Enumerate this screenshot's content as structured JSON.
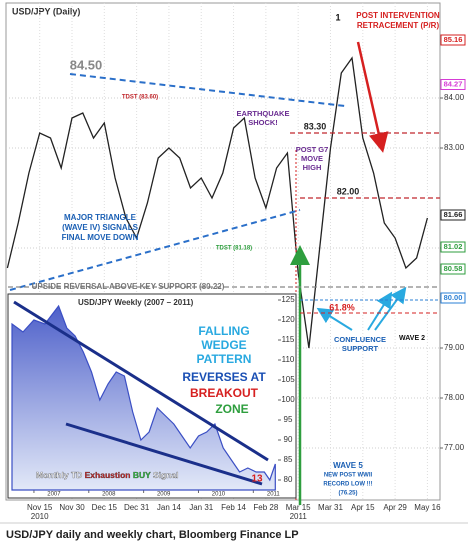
{
  "chart_data": [
    {
      "type": "line",
      "title": "USD/JPY (Daily)",
      "categories": [
        null,
        null,
        null,
        "Nov 15",
        null,
        null,
        "Nov 30",
        null,
        null,
        "Dec 15",
        null,
        null,
        "Dec 31",
        null,
        null,
        "Jan 14",
        null,
        null,
        "Jan 31",
        null,
        null,
        "Feb 14",
        null,
        null,
        "Feb 28",
        null,
        null,
        "Mar 15",
        null,
        null,
        "Mar 31",
        null,
        null,
        "Apr 15",
        null,
        null,
        "Apr 29",
        null,
        null,
        "May 16"
      ],
      "year_labels": [
        "2010",
        "2011"
      ],
      "values": [
        80.6,
        81.5,
        82.5,
        83.3,
        83.2,
        82.6,
        83.6,
        83.7,
        83.2,
        83.5,
        82.4,
        81.6,
        81.2,
        81.9,
        82.8,
        83.0,
        82.8,
        82.2,
        82.4,
        82.0,
        82.5,
        83.4,
        83.6,
        82.4,
        81.8,
        82.6,
        82.9,
        80.5,
        79.0,
        81.0,
        83.0,
        84.5,
        84.8,
        83.2,
        82.5,
        81.5,
        81.2,
        80.6,
        80.8,
        81.6
      ],
      "color": "#222222",
      "ylim": [
        76,
        85.9
      ],
      "yticks": [
        {
          "value": 77,
          "label": "77.00"
        },
        {
          "value": 78,
          "label": "78.00"
        },
        {
          "value": 79,
          "label": "79.00"
        },
        {
          "value": 81,
          "label": "81.00"
        },
        {
          "value": 83,
          "label": "83.00"
        },
        {
          "value": 84,
          "label": "84.00"
        }
      ],
      "grid": true,
      "levels": [
        {
          "value": 83.3,
          "label": "83.30"
        },
        {
          "value": 82,
          "label": "82.00"
        },
        80.22
      ],
      "level_colors": [
        "#c0282d",
        "#c0282d",
        "#888888"
      ],
      "price_markers": [
        85.16,
        84.27,
        81.66,
        81.02,
        80.58,
        {
          "value": 80,
          "label": "80.00"
        }
      ],
      "price_marker_colors": [
        "#d62020",
        "#d63cd6",
        "#222222",
        "#2e9e3e",
        "#2e9e3e",
        "#2a7fd4"
      ],
      "annotations": [
        {
          "lines": [
            "84.50"
          ],
          "color": "#888888"
        },
        {
          "lines": [
            "TDST (83.60)"
          ],
          "color": "#c0282d"
        },
        {
          "lines": [
            "EARTHQUAKE",
            "SHOCK!"
          ],
          "color": "#6a2c91"
        },
        {
          "lines": [
            "POST G7",
            "MOVE",
            "HIGH"
          ],
          "color": "#6a2c91"
        },
        {
          "lines": [
            "1"
          ],
          "color": "#111111"
        },
        {
          "lines": [
            "POST INTERVENTION",
            "RETRACEMENT (P/R)"
          ],
          "color": "#d62020"
        },
        {
          "lines": [
            "MAJOR TRIANGLE",
            "(WAVE IV) SIGNALS",
            "FINAL MOVE DOWN"
          ],
          "color": "#1a5fb4"
        },
        {
          "lines": [
            "TDST (81.18)"
          ],
          "color": "#2e9e3e"
        },
        {
          "lines": [
            "UPSIDE REVERSAL ABOVE  KEY SUPPORT (80.22)"
          ],
          "color": "#777777"
        },
        {
          "lines": [
            "61.8%"
          ],
          "color": "#d62020"
        },
        {
          "lines": [
            "CONFLUENCE",
            "SUPPORT"
          ],
          "color": "#1a5fb4"
        },
        {
          "lines": [
            "WAVE 2"
          ],
          "color": "#111111"
        },
        {
          "lines": [
            "WAVE 5",
            "NEW POST WWII",
            "RECORD LOW !!!",
            "(76.25)"
          ],
          "color": "#1a5fb4"
        }
      ]
    },
    {
      "type": "area",
      "title": "USD/JPY Weekly (2007 – 2011)",
      "x": [
        2006.6,
        2006.8,
        2007.0,
        2007.2,
        2007.45,
        2007.6,
        2007.75,
        2007.9,
        2008.05,
        2008.2,
        2008.35,
        2008.5,
        2008.65,
        2008.8,
        2008.95,
        2009.1,
        2009.25,
        2009.4,
        2009.55,
        2009.7,
        2009.85,
        2010.0,
        2010.15,
        2010.3,
        2010.45,
        2010.6,
        2010.75,
        2010.9,
        2011.05,
        2011.2,
        2011.3,
        2011.4
      ],
      "values": [
        119,
        117,
        120,
        119,
        123.5,
        118,
        116,
        112,
        107,
        100,
        104,
        107,
        106,
        97,
        90,
        92,
        98,
        96,
        94,
        91,
        88,
        91,
        92,
        94,
        88,
        85,
        82,
        83,
        82,
        82,
        80,
        84
      ],
      "color": "#3b4fc4",
      "xlim": [
        2006.6,
        2011.45
      ],
      "xticks": [
        2007,
        2008,
        2009,
        2010,
        2011
      ],
      "ylim": [
        77.5,
        126
      ],
      "yticks": [
        80,
        85,
        90,
        95,
        100,
        105,
        110,
        115,
        120,
        125
      ],
      "annotations": [
        {
          "lines": [
            "FALLING",
            "WEDGE",
            "PATTERN"
          ],
          "color": "#29a9e0"
        },
        {
          "lines": [
            "REVERSES AT"
          ],
          "color": "#1a4fb4"
        },
        {
          "lines": [
            "BREAKOUT"
          ],
          "color": "#d62020"
        },
        {
          "lines": [
            "ZONE"
          ],
          "color": "#2e9e3e"
        },
        {
          "lines": [
            "13"
          ],
          "color": "#d62020"
        }
      ],
      "signal_parts": [
        {
          "text": "Monthly TD ",
          "color": "#ffffff"
        },
        {
          "text": "Exhaustion",
          "color": "#d62020"
        },
        {
          "text": " BUY",
          "color": "#2ecc40"
        },
        {
          "text": " Signal",
          "color": "#ffffff"
        }
      ]
    }
  ],
  "caption": "USD/JPY daily and weekly chart, Bloomberg Finance LP"
}
